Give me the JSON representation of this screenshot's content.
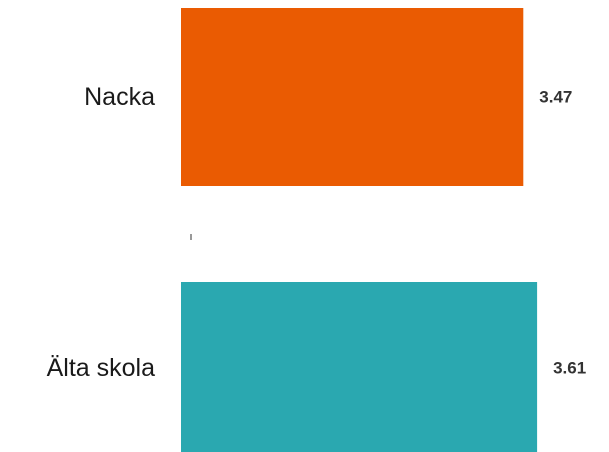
{
  "chart_data": {
    "type": "bar",
    "orientation": "horizontal",
    "categories": [
      "Nacka",
      "Älta skola"
    ],
    "values": [
      3.47,
      3.61
    ],
    "value_labels": [
      "3.47",
      "3.61"
    ],
    "colors": [
      "#EA5B02",
      "#2AA8B0"
    ],
    "title": "",
    "xlabel": "",
    "ylabel": "",
    "grid": false,
    "legend": "none"
  }
}
